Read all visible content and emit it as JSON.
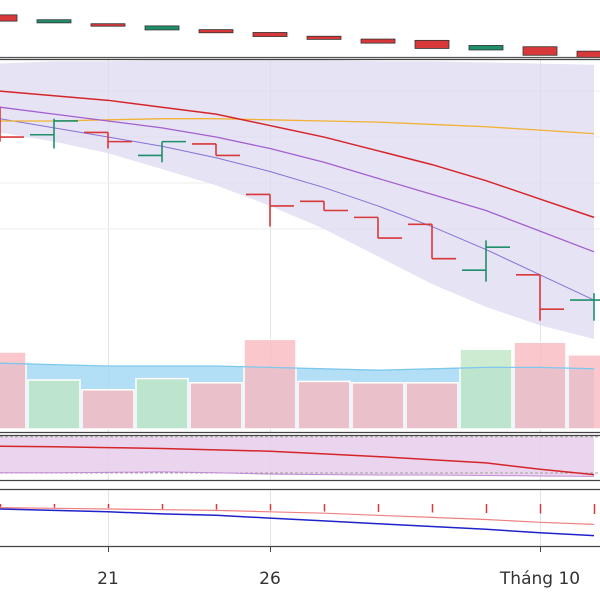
{
  "chart_data": {
    "type": "ohlc",
    "x_tick_labels": [
      "21",
      "26",
      "Tháng 10"
    ],
    "x_tick_index": [
      2,
      5,
      10
    ],
    "colors": {
      "up": "#1f8f6a",
      "down": "#d9383a",
      "ma_red": "#d6252a",
      "ma_orange": "#f2b233",
      "ma_purple": "#a35fd1",
      "band_fill": "#dcdaf0",
      "vol_up": "#bfe6c4",
      "vol_down": "#f7b9bf",
      "vol_over_fill": "#9fd6f4",
      "vol_ma": "#7fc8ec",
      "osc_fill": "#e7cdea",
      "osc_line": "#d6252a",
      "macd_line": "#1f22c9",
      "signal_line": "#f08080"
    },
    "candles": [
      {
        "open": 104.3,
        "high": 105.3,
        "low": 103.8,
        "close": 104.0
      },
      {
        "open": 104.1,
        "high": 104.8,
        "low": 103.5,
        "close": 104.7
      },
      {
        "open": 104.2,
        "high": 104.2,
        "low": 103.5,
        "close": 103.8
      },
      {
        "open": 103.2,
        "high": 103.8,
        "low": 102.9,
        "close": 103.8
      },
      {
        "open": 103.7,
        "high": 103.7,
        "low": 103.2,
        "close": 103.2
      },
      {
        "open": 101.5,
        "high": 101.5,
        "low": 100.1,
        "close": 101.0
      },
      {
        "open": 101.2,
        "high": 101.2,
        "low": 100.8,
        "close": 100.8
      },
      {
        "open": 100.5,
        "high": 100.5,
        "low": 99.6,
        "close": 99.6
      },
      {
        "open": 100.2,
        "high": 100.2,
        "low": 98.7,
        "close": 98.7
      },
      {
        "open": 98.2,
        "high": 99.5,
        "low": 97.7,
        "close": 99.2
      },
      {
        "open": 98.0,
        "high": 98.0,
        "low": 96.0,
        "close": 96.5
      },
      {
        "open": 96.9,
        "high": 97.2,
        "low": 96.0,
        "close": 96.9
      }
    ],
    "top_strip": [
      {
        "dir": "down",
        "h": 1.4
      },
      {
        "dir": "up",
        "h": 0.7
      },
      {
        "dir": "down",
        "h": 0.4
      },
      {
        "dir": "up",
        "h": 0.9
      },
      {
        "dir": "down",
        "h": 0.7
      },
      {
        "dir": "down",
        "h": 0.9
      },
      {
        "dir": "down",
        "h": 0.7
      },
      {
        "dir": "down",
        "h": 0.9
      },
      {
        "dir": "down",
        "h": 1.8
      },
      {
        "dir": "up",
        "h": 1.0
      },
      {
        "dir": "down",
        "h": 1.9
      },
      {
        "dir": "down",
        "h": 1.4
      }
    ],
    "ma_red": [
      106.0,
      105.8,
      105.6,
      105.3,
      105.0,
      104.5,
      104.0,
      103.4,
      102.8,
      102.1,
      101.3,
      100.5
    ],
    "ma_orange": [
      104.7,
      104.7,
      104.75,
      104.8,
      104.8,
      104.75,
      104.7,
      104.65,
      104.55,
      104.45,
      104.3,
      104.15
    ],
    "ma_purple": [
      105.3,
      105.0,
      104.7,
      104.4,
      104.0,
      103.5,
      102.9,
      102.2,
      101.5,
      100.8,
      99.9,
      99.0
    ],
    "band_upper": [
      107.2,
      107.3,
      107.3,
      107.35,
      107.35,
      107.35,
      107.35,
      107.3,
      107.3,
      107.25,
      107.2,
      107.15
    ],
    "band_lower": [
      104.2,
      103.8,
      103.3,
      102.6,
      101.9,
      101.0,
      100.0,
      98.8,
      97.6,
      96.6,
      95.8,
      95.2
    ],
    "band_mid": [
      104.8,
      104.4,
      104.0,
      103.6,
      103.1,
      102.5,
      101.8,
      101.0,
      100.1,
      99.1,
      98.0,
      96.9
    ],
    "volume": [
      {
        "dir": "down",
        "v": 55
      },
      {
        "dir": "up",
        "v": 35
      },
      {
        "dir": "down",
        "v": 28
      },
      {
        "dir": "up",
        "v": 36
      },
      {
        "dir": "down",
        "v": 33
      },
      {
        "dir": "down",
        "v": 64
      },
      {
        "dir": "down",
        "v": 34
      },
      {
        "dir": "down",
        "v": 33
      },
      {
        "dir": "down",
        "v": 33
      },
      {
        "dir": "up",
        "v": 57
      },
      {
        "dir": "down",
        "v": 62
      },
      {
        "dir": "down",
        "v": 53
      }
    ],
    "volume_ma": [
      47,
      46,
      45,
      45,
      45,
      44,
      43,
      42,
      43,
      44,
      44,
      43
    ],
    "osc_upper": [
      96,
      96,
      96,
      96,
      96,
      96,
      96,
      96,
      96,
      96,
      96,
      96
    ],
    "osc_line": [
      75,
      74,
      72,
      70,
      67,
      64,
      58,
      52,
      45,
      38,
      24,
      12
    ],
    "osc_lower": [
      16,
      16,
      17,
      18,
      16,
      13,
      12,
      11,
      11,
      10,
      9,
      8
    ],
    "macd": [
      0.0,
      -0.1,
      -0.2,
      -0.35,
      -0.45,
      -0.65,
      -0.85,
      -1.05,
      -1.25,
      -1.45,
      -1.7,
      -1.9
    ],
    "signal": [
      0.1,
      0.05,
      0.0,
      -0.05,
      -0.1,
      -0.2,
      -0.3,
      -0.45,
      -0.6,
      -0.75,
      -0.95,
      -1.1
    ],
    "macd_hist": [
      -0.1,
      -0.15,
      -0.2,
      -0.3,
      -0.35,
      -0.45,
      -0.55,
      -0.6,
      -0.65,
      -0.7,
      -0.75,
      -0.8
    ]
  }
}
